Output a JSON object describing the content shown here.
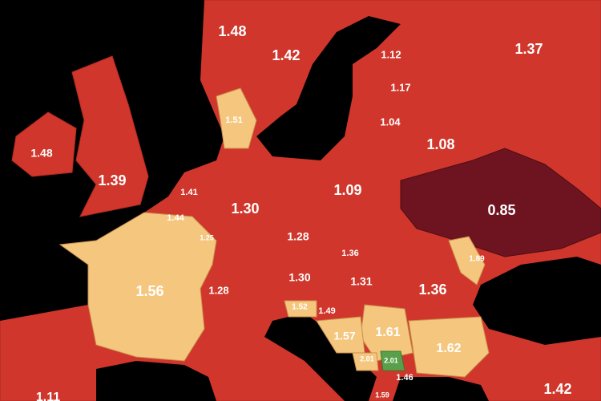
{
  "labels": [
    "1.48",
    "1.42",
    "1.12",
    "1.37",
    "1.17",
    "1.51",
    "1.04",
    "1.48",
    "1.08",
    "1.39",
    "1.41",
    "1.09",
    "1.30",
    "0.85",
    "1.44",
    "1.25",
    "1.28",
    "1.36",
    "1.89",
    "1.56",
    "1.30",
    "1.31",
    "1.36",
    "1.28",
    "1.52",
    "1.49",
    "1.57",
    "1.61",
    "1.62",
    "2.01",
    "2.01",
    "1.46",
    "1.42",
    "1.59",
    "1.11"
  ]
}
